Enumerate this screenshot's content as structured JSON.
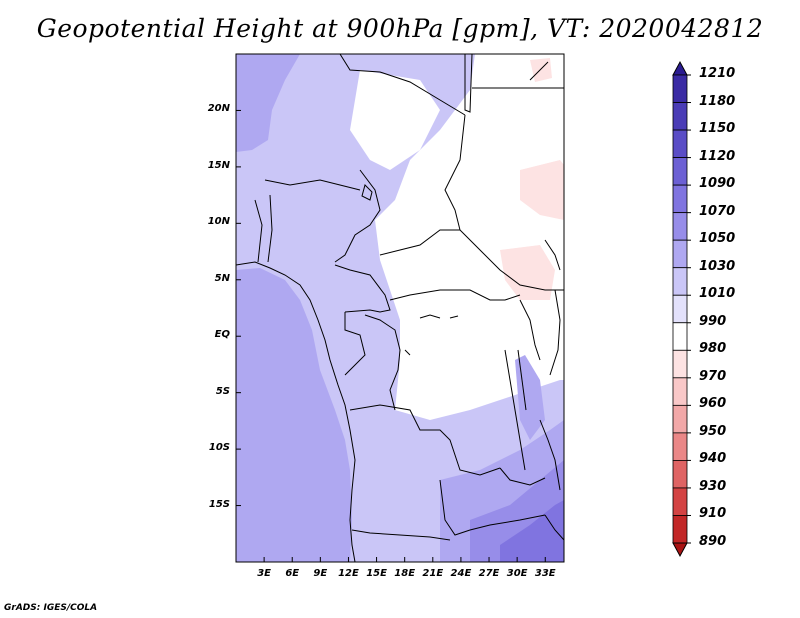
{
  "title": "Geopotential Height at 900hPa [gpm], VT: 2020042812",
  "credit": "GrADS: IGES/COLA",
  "map": {
    "lat_labels": [
      "20N",
      "15N",
      "10N",
      "5N",
      "EQ",
      "5S",
      "10S",
      "15S"
    ],
    "lat_values": [
      20,
      15,
      10,
      5,
      0,
      -5,
      -10,
      -15
    ],
    "lon_labels": [
      "3E",
      "6E",
      "9E",
      "12E",
      "15E",
      "18E",
      "21E",
      "24E",
      "27E",
      "30E",
      "33E"
    ],
    "lon_values": [
      3,
      6,
      9,
      12,
      15,
      18,
      21,
      24,
      27,
      30,
      33
    ],
    "lon_range": [
      0,
      35
    ],
    "lat_range": [
      -20,
      25
    ]
  },
  "colorbar": {
    "labels": [
      "1210",
      "1180",
      "1150",
      "1120",
      "1090",
      "1070",
      "1050",
      "1030",
      "1010",
      "990",
      "980",
      "970",
      "960",
      "950",
      "940",
      "930",
      "910",
      "890"
    ],
    "colors": [
      "#2b1c91",
      "#3a2ba4",
      "#4a3cb6",
      "#5a4dc6",
      "#6c60d4",
      "#8074e0",
      "#978de9",
      "#afa8f1",
      "#cac6f7",
      "#e3e1fb",
      "#ffffff",
      "#fde3e3",
      "#f9c8c8",
      "#f2a8a8",
      "#ea8787",
      "#df6464",
      "#d34343",
      "#c22727",
      "#a81414"
    ]
  }
}
